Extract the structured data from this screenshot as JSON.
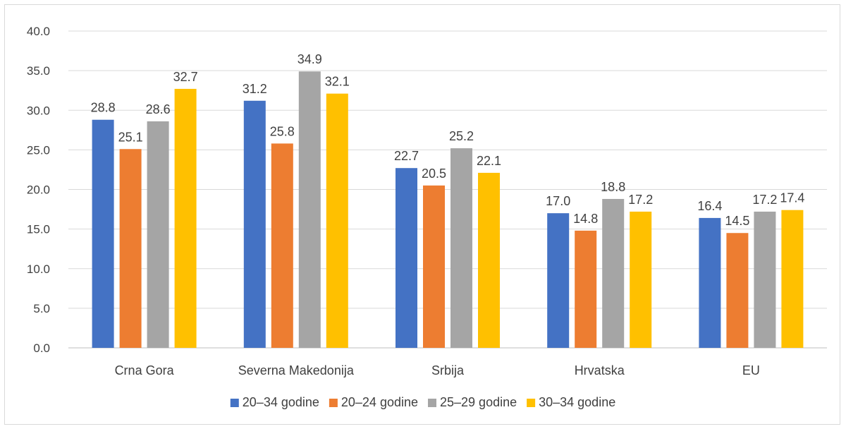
{
  "chart_data": {
    "type": "bar",
    "categories": [
      "Crna Gora",
      "Severna Makedonija",
      "Srbija",
      "Hrvatska",
      "EU"
    ],
    "series": [
      {
        "name": "20–34 godine",
        "color": "#4472C4",
        "values": [
          28.8,
          31.2,
          22.7,
          17.0,
          16.4
        ]
      },
      {
        "name": "20–24 godine",
        "color": "#ED7D31",
        "values": [
          25.1,
          25.8,
          20.5,
          14.8,
          14.5
        ]
      },
      {
        "name": "25–29 godine",
        "color": "#A5A5A5",
        "values": [
          28.6,
          34.9,
          25.2,
          18.8,
          17.2
        ]
      },
      {
        "name": "30–34 godine",
        "color": "#FFC000",
        "values": [
          32.7,
          32.1,
          22.1,
          17.2,
          17.4
        ]
      }
    ],
    "ylim": [
      0,
      40
    ],
    "yticks": [
      "0.0",
      "5.0",
      "10.0",
      "15.0",
      "20.0",
      "25.0",
      "30.0",
      "35.0",
      "40.0"
    ],
    "grid": true,
    "legend_position": "bottom",
    "title": "",
    "xlabel": "",
    "ylabel": ""
  }
}
